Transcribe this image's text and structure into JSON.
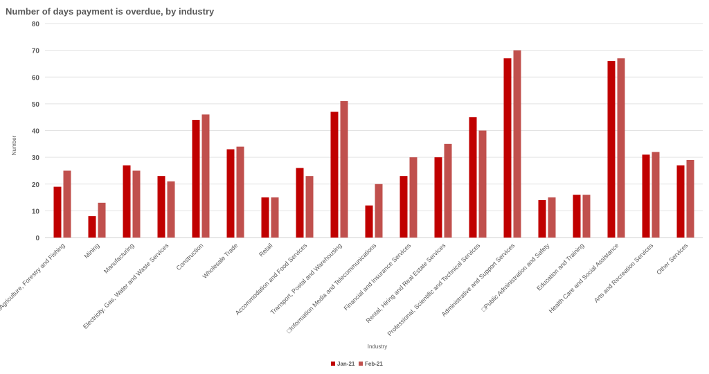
{
  "chart_data": {
    "type": "bar",
    "title": "Number of days payment is overdue, by industry",
    "xlabel": "Industry",
    "ylabel": "Number",
    "ylim": [
      0,
      80
    ],
    "yticks": [
      0,
      10,
      20,
      30,
      40,
      50,
      60,
      70,
      80
    ],
    "grid": true,
    "legend_position": "bottom",
    "categories": [
      "□Agriculture, Forestry and Fishing",
      "Mining",
      "Manufacturing",
      "Electricity, Gas, Water and Waste Services",
      "Construction",
      "Wholesale Trade",
      "Retail",
      "Accommodation and Food Services",
      "Transport, Postal and Warehousing",
      "□Information Media and Telecommunications",
      "Financial and Insurance Services",
      "Rental, Hiring and Real Estate Services",
      "Professional, Scientific and Technical Services",
      "Administrative and Support Services",
      "□Public Administration and Safety",
      "Education and Training",
      "Health Care and Social Assistance",
      "Arts and Recreation Services",
      "Other Services"
    ],
    "series": [
      {
        "name": "Jan-21",
        "color": "#C00000",
        "values": [
          19,
          8,
          27,
          23,
          44,
          33,
          15,
          26,
          47,
          12,
          23,
          30,
          45,
          67,
          14,
          16,
          66,
          31,
          27
        ]
      },
      {
        "name": "Feb-21",
        "color": "#C0504D",
        "values": [
          25,
          13,
          25,
          21,
          46,
          34,
          15,
          23,
          51,
          20,
          30,
          35,
          40,
          70,
          15,
          16,
          67,
          32,
          29
        ]
      }
    ]
  }
}
